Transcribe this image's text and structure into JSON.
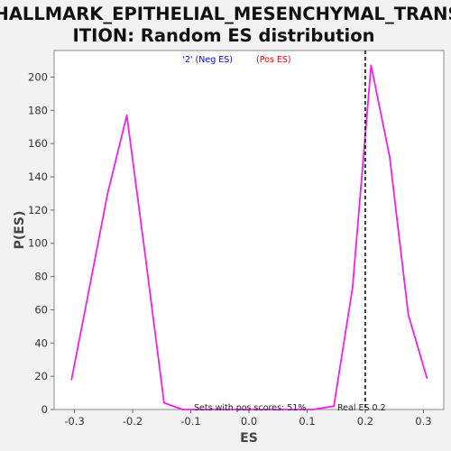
{
  "chart_data": {
    "type": "line",
    "title_line1": "HALLMARK_EPITHELIAL_MESENCHYMAL_TRANS",
    "title_line2": "ITION: Random ES distribution",
    "xlabel": "ES",
    "ylabel": "P(ES)",
    "xlim": [
      -0.335,
      0.335
    ],
    "ylim": [
      0,
      216
    ],
    "xticks": [
      -0.3,
      -0.2,
      -0.1,
      0.0,
      0.1,
      0.2,
      0.3
    ],
    "xtick_labels": [
      "-0.3",
      "-0.2",
      "-0.1",
      "0.0",
      "0.1",
      "0.2",
      "0.3"
    ],
    "yticks": [
      0,
      20,
      40,
      60,
      80,
      100,
      120,
      140,
      160,
      180,
      200
    ],
    "ytick_labels": [
      "0",
      "20",
      "40",
      "60",
      "80",
      "100",
      "120",
      "140",
      "160",
      "180",
      "200"
    ],
    "legend": {
      "neg_label": "'2' (Neg ES)",
      "pos_label": "(Pos ES)",
      "neg_color": "#0000ff",
      "pos_color": "#ff0000",
      "placement": "top-center"
    },
    "series": [
      {
        "color": "#ee22ee",
        "x": [
          -0.305,
          -0.275,
          -0.243,
          -0.21,
          -0.178,
          -0.146,
          -0.114,
          -0.082,
          -0.05,
          -0.018,
          0.014,
          0.046,
          0.078,
          0.11,
          0.146,
          0.178,
          0.21,
          0.242,
          0.274,
          0.306
        ],
        "y": [
          18,
          72,
          130,
          177,
          92,
          4,
          0,
          0,
          0,
          0,
          0,
          0,
          0,
          0,
          2,
          73,
          207,
          152,
          57,
          19
        ]
      }
    ],
    "real_es": 0.2,
    "real_es_label": "Real ES 0.2",
    "annotation": "Sets with pos scores: 51%",
    "grid": false
  }
}
